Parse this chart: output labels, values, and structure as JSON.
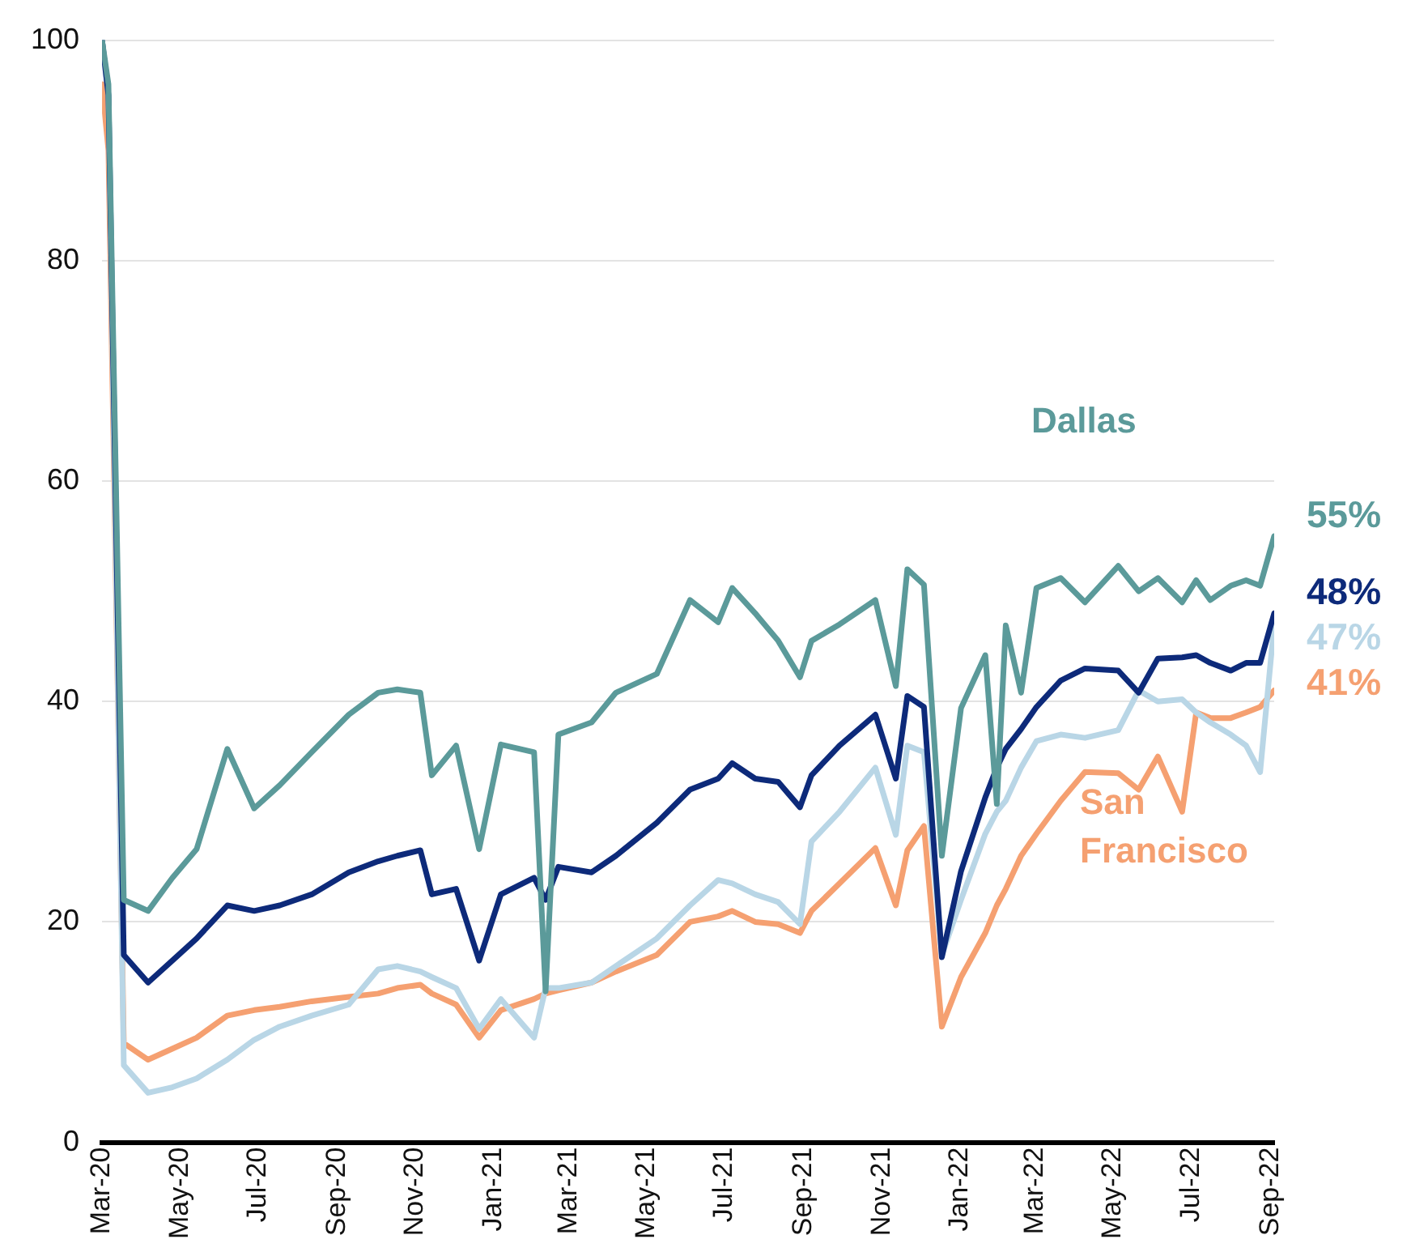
{
  "chart_data": {
    "type": "line",
    "x": [
      "2020-03-01",
      "2020-03-06",
      "2020-03-18",
      "2020-04-06",
      "2020-04-25",
      "2020-05-14",
      "2020-06-07",
      "2020-06-28",
      "2020-07-18",
      "2020-08-12",
      "2020-09-10",
      "2020-10-03",
      "2020-10-18",
      "2020-11-05",
      "2020-11-14",
      "2020-12-03",
      "2020-12-21",
      "2021-01-07",
      "2021-02-02",
      "2021-02-11",
      "2021-02-21",
      "2021-03-19",
      "2021-04-07",
      "2021-05-09",
      "2021-06-04",
      "2021-06-26",
      "2021-07-07",
      "2021-07-25",
      "2021-08-12",
      "2021-08-29",
      "2021-09-07",
      "2021-09-29",
      "2021-10-27",
      "2021-11-12",
      "2021-11-21",
      "2021-12-04",
      "2021-12-18",
      "2022-01-02",
      "2022-01-21",
      "2022-01-30",
      "2022-02-06",
      "2022-02-18",
      "2022-03-02",
      "2022-03-21",
      "2022-04-09",
      "2022-05-05",
      "2022-05-21",
      "2022-06-05",
      "2022-06-24",
      "2022-07-05",
      "2022-07-16",
      "2022-08-01",
      "2022-08-13",
      "2022-08-24",
      "2022-09-04"
    ],
    "series": [
      {
        "name": "Dallas",
        "color": "#5b9a9a",
        "values": [
          100,
          96,
          22,
          21,
          24,
          26.6,
          35.7,
          30.3,
          32.4,
          35.4,
          38.8,
          40.8,
          41.1,
          40.8,
          33.3,
          36,
          26.6,
          36.1,
          35.4,
          13.7,
          37,
          38.1,
          40.8,
          42.5,
          49.2,
          47.2,
          50.3,
          48,
          45.5,
          42.2,
          45.5,
          47,
          49.2,
          41.4,
          52,
          50.6,
          26,
          39.4,
          44.2,
          30.7,
          46.9,
          40.8,
          50.3,
          51.2,
          49,
          52.3,
          50,
          51.2,
          49,
          51,
          49.2,
          50.5,
          51,
          50.5,
          55
        ],
        "value_labels": [
          null,
          null,
          null,
          null,
          null,
          null,
          null,
          null,
          null,
          null,
          null,
          null,
          null,
          null,
          null,
          null,
          null,
          null,
          null,
          null,
          null,
          null,
          null,
          null,
          null,
          null,
          null,
          null,
          null,
          null,
          null,
          null,
          null,
          null,
          null,
          null,
          null,
          null,
          null,
          null,
          null,
          null,
          null,
          null,
          null,
          null,
          null,
          null,
          null,
          null,
          null,
          null,
          null,
          null,
          "55%"
        ]
      },
      {
        "color": "#0d2a7a",
        "values": [
          100,
          95,
          17,
          14.5,
          16.5,
          18.5,
          21.5,
          21,
          21.5,
          22.5,
          24.5,
          25.5,
          26,
          26.5,
          22.5,
          23,
          16.5,
          22.5,
          24,
          22,
          25,
          24.5,
          26,
          29,
          32,
          33,
          34.4,
          33,
          32.7,
          30.4,
          33.3,
          36,
          38.8,
          33,
          40.5,
          39.5,
          16.8,
          24.6,
          31.3,
          34,
          35.7,
          37.5,
          39.5,
          41.9,
          43,
          42.8,
          40.8,
          43.9,
          44,
          44.2,
          43.5,
          42.8,
          43.5,
          43.5,
          48
        ],
        "value_labels": [
          null,
          null,
          null,
          null,
          null,
          null,
          null,
          null,
          null,
          null,
          null,
          null,
          null,
          null,
          null,
          null,
          null,
          null,
          null,
          null,
          null,
          null,
          null,
          null,
          null,
          null,
          null,
          null,
          null,
          null,
          null,
          null,
          null,
          null,
          null,
          null,
          null,
          null,
          null,
          null,
          null,
          null,
          null,
          null,
          null,
          null,
          null,
          null,
          null,
          null,
          null,
          null,
          null,
          null,
          "48%"
        ]
      },
      {
        "color": "#b9d6e6",
        "values": [
          100,
          95,
          7,
          4.5,
          5,
          5.8,
          7.5,
          9.3,
          10.5,
          11.5,
          12.5,
          15.7,
          16,
          15.5,
          15,
          14,
          10.3,
          13,
          9.5,
          14,
          14,
          14.5,
          16,
          18.5,
          21.5,
          23.8,
          23.5,
          22.5,
          21.8,
          19.8,
          27.3,
          30,
          34,
          27.9,
          36,
          35.4,
          17,
          22,
          28,
          30,
          31,
          34,
          36.4,
          37,
          36.7,
          37.4,
          41,
          40,
          40.2,
          39,
          38.1,
          37,
          36,
          33.6,
          47
        ],
        "value_labels": [
          null,
          null,
          null,
          null,
          null,
          null,
          null,
          null,
          null,
          null,
          null,
          null,
          null,
          null,
          null,
          null,
          null,
          null,
          null,
          null,
          null,
          null,
          null,
          null,
          null,
          null,
          null,
          null,
          null,
          null,
          null,
          null,
          null,
          null,
          null,
          null,
          null,
          null,
          null,
          null,
          null,
          null,
          null,
          null,
          null,
          null,
          null,
          null,
          null,
          null,
          null,
          null,
          null,
          null,
          "47%"
        ]
      },
      {
        "name": "San Francisco",
        "color": "#f5a071",
        "values": [
          96,
          90,
          9,
          7.5,
          8.5,
          9.5,
          11.5,
          12,
          12.3,
          12.8,
          13.2,
          13.5,
          14,
          14.3,
          13.5,
          12.5,
          9.5,
          12,
          13,
          13.5,
          13.8,
          14.5,
          15.5,
          17,
          20,
          20.5,
          21,
          20,
          19.8,
          19,
          21,
          23.5,
          26.7,
          21.5,
          26.5,
          28.7,
          10.5,
          15,
          19,
          21.5,
          23,
          26,
          28,
          31,
          33.6,
          33.5,
          32,
          35,
          30,
          39,
          38.5,
          38.5,
          39,
          39.5,
          41
        ],
        "value_labels": [
          null,
          null,
          null,
          null,
          null,
          null,
          null,
          null,
          null,
          null,
          null,
          null,
          null,
          null,
          null,
          null,
          null,
          null,
          null,
          null,
          null,
          null,
          null,
          null,
          null,
          null,
          null,
          null,
          null,
          null,
          null,
          null,
          null,
          null,
          null,
          null,
          null,
          null,
          null,
          null,
          null,
          null,
          null,
          null,
          null,
          null,
          null,
          null,
          null,
          null,
          null,
          null,
          null,
          null,
          "41%"
        ]
      }
    ],
    "xlim": [
      "2020-03-01",
      "2022-09-04"
    ],
    "xticks": [
      {
        "value": "2020-03",
        "label": "Mar-20"
      },
      {
        "value": "2020-05",
        "label": "May-20"
      },
      {
        "value": "2020-07",
        "label": "Jul-20"
      },
      {
        "value": "2020-09",
        "label": "Sep-20"
      },
      {
        "value": "2020-11",
        "label": "Nov-20"
      },
      {
        "value": "2021-01",
        "label": "Jan-21"
      },
      {
        "value": "2021-03",
        "label": "Mar-21"
      },
      {
        "value": "2021-05",
        "label": "May-21"
      },
      {
        "value": "2021-07",
        "label": "Jul-21"
      },
      {
        "value": "2021-09",
        "label": "Sep-21"
      },
      {
        "value": "2021-11",
        "label": "Nov-21"
      },
      {
        "value": "2022-01",
        "label": "Jan-22"
      },
      {
        "value": "2022-03",
        "label": "Mar-22"
      },
      {
        "value": "2022-05",
        "label": "May-22"
      },
      {
        "value": "2022-07",
        "label": "Jul-22"
      },
      {
        "value": "2022-09",
        "label": "Sep-22"
      }
    ],
    "ylim": [
      0,
      100
    ],
    "yticks": [
      0,
      20,
      40,
      60,
      80,
      100
    ],
    "grid": "y",
    "legend": false,
    "marker": "none",
    "line_style": "solid"
  }
}
